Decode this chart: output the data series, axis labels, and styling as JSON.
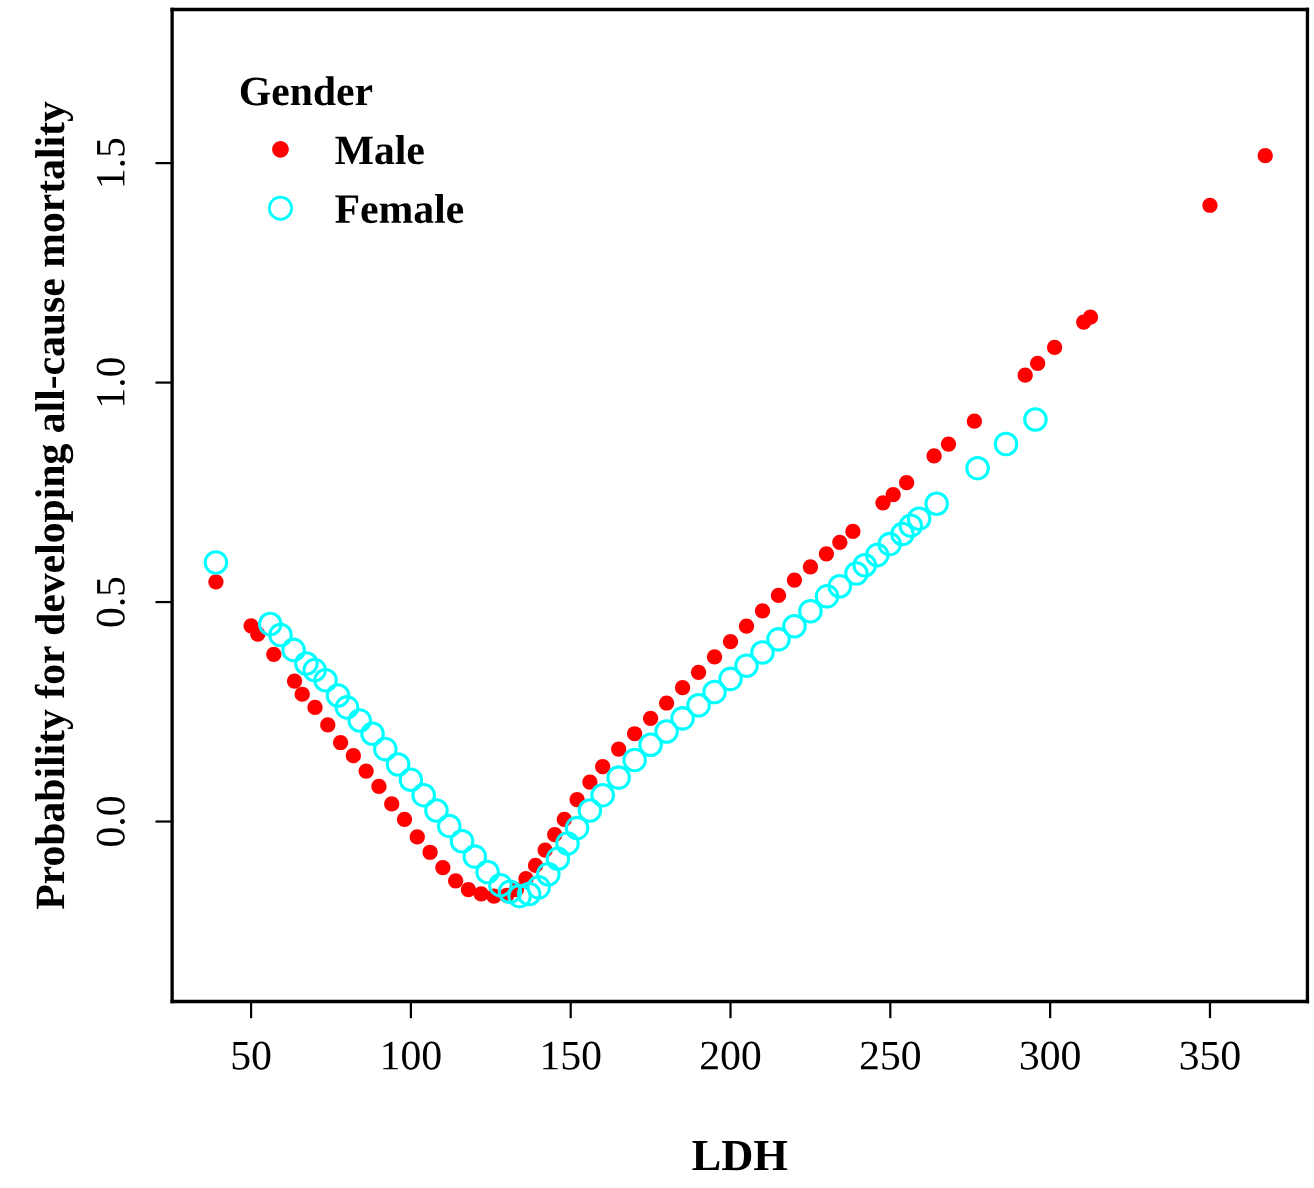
{
  "chart_data": {
    "type": "scatter",
    "xlabel": "LDH",
    "ylabel": "Probability for developing all-cause mortality",
    "legend_title": "Gender",
    "legend": "top left",
    "marker": "circle",
    "grid": false,
    "xlim": [
      25.3,
      380.5
    ],
    "ylim": [
      -0.41,
      1.85
    ],
    "xticks": [
      50,
      100,
      150,
      200,
      250,
      300,
      350
    ],
    "yticks": [
      {
        "value": 0,
        "label": "0.0"
      },
      0.5,
      {
        "value": 1,
        "label": "1.0"
      },
      1.5
    ],
    "series": [
      {
        "name": "Male",
        "color": "#ff0000",
        "x": [
          39,
          50,
          52.1,
          57.1,
          63.6,
          66,
          70,
          74,
          78,
          82,
          86,
          90,
          94,
          98,
          102,
          106,
          110,
          114,
          118,
          122,
          126,
          130,
          133,
          136,
          139,
          142,
          145,
          148,
          152,
          156,
          160,
          165,
          170,
          175,
          180,
          185,
          190,
          195,
          200,
          205,
          210,
          215,
          220,
          225,
          230,
          234.2,
          238.3,
          247.7,
          250.9,
          255.1,
          263.7,
          268.2,
          276.3,
          292.2,
          296.1,
          301.4,
          310.5,
          312.6,
          350,
          367.3
        ],
        "values": [
          0.546,
          0.446,
          0.427,
          0.381,
          0.32,
          0.29,
          0.26,
          0.22,
          0.18,
          0.15,
          0.115,
          0.08,
          0.04,
          0.005,
          -0.035,
          -0.07,
          -0.105,
          -0.135,
          -0.155,
          -0.165,
          -0.17,
          -0.168,
          -0.155,
          -0.13,
          -0.1,
          -0.065,
          -0.03,
          0.005,
          0.05,
          0.09,
          0.125,
          0.165,
          0.2,
          0.235,
          0.27,
          0.305,
          0.34,
          0.375,
          0.41,
          0.445,
          0.48,
          0.515,
          0.55,
          0.58,
          0.61,
          0.636,
          0.661,
          0.726,
          0.745,
          0.772,
          0.833,
          0.86,
          0.912,
          1.017,
          1.044,
          1.08,
          1.138,
          1.149,
          1.404,
          1.517
        ]
      },
      {
        "name": "Female",
        "color": "#00ffff",
        "x": [
          39,
          56,
          59.2,
          63.3,
          67.3,
          69.9,
          73.3,
          77.2,
          80,
          84,
          88,
          92,
          96,
          100,
          104,
          108,
          112,
          116,
          120,
          124,
          128,
          131,
          134,
          137,
          140,
          143,
          146,
          149,
          152,
          156,
          160,
          165,
          170,
          175,
          180,
          185,
          190,
          195,
          200,
          205,
          210,
          215,
          220,
          225,
          230.2,
          234.2,
          239.4,
          242,
          245.9,
          249.8,
          253.8,
          256.4,
          259,
          264.5,
          277.3,
          286.2,
          295.4
        ],
        "values": [
          0.59,
          0.45,
          0.425,
          0.391,
          0.36,
          0.345,
          0.322,
          0.287,
          0.26,
          0.23,
          0.2,
          0.165,
          0.13,
          0.095,
          0.06,
          0.025,
          -0.01,
          -0.045,
          -0.08,
          -0.115,
          -0.145,
          -0.16,
          -0.17,
          -0.165,
          -0.15,
          -0.12,
          -0.085,
          -0.05,
          -0.015,
          0.025,
          0.06,
          0.1,
          0.14,
          0.175,
          0.205,
          0.235,
          0.265,
          0.295,
          0.325,
          0.355,
          0.385,
          0.415,
          0.445,
          0.479,
          0.513,
          0.536,
          0.565,
          0.584,
          0.607,
          0.632,
          0.655,
          0.674,
          0.69,
          0.724,
          0.805,
          0.86,
          0.916
        ]
      }
    ]
  }
}
